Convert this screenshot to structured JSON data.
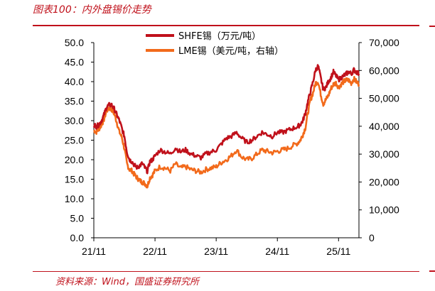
{
  "header": {
    "figure_title": "图表100：内外盘锡价走势"
  },
  "footer": {
    "source": "资料来源：Wind，国盛证券研究所"
  },
  "colors": {
    "accent": "#c0111b",
    "shfe": "#c0111b",
    "lme": "#f26a1b"
  },
  "chart_data": {
    "type": "line",
    "title": "",
    "xlabel": "",
    "ylabel": "",
    "x_ticks": [
      "21/11",
      "22/11",
      "23/11",
      "24/11",
      "25/11"
    ],
    "x_range": [
      "2021-11",
      "2026-03"
    ],
    "y_left": {
      "ticks": [
        "0.0",
        "5.0",
        "10.0",
        "15.0",
        "20.0",
        "25.0",
        "30.0",
        "35.0",
        "40.0",
        "45.0",
        "50.0"
      ],
      "range": [
        0,
        50
      ],
      "unit": "万元/吨"
    },
    "y_right": {
      "ticks": [
        "0",
        "10,000",
        "20,000",
        "30,000",
        "40,000",
        "50,000",
        "60,000",
        "70,000"
      ],
      "range": [
        0,
        70000
      ],
      "unit": "美元/吨"
    },
    "legend_position": "top",
    "grid": false,
    "series": [
      {
        "name": "SHFE锡（万元/吨）",
        "axis": "left",
        "x": [
          0,
          0.5,
          1,
          1.5,
          2,
          2.5,
          3,
          3.5,
          4,
          4.5,
          5,
          5.5,
          6,
          6.5,
          7,
          7.5,
          8,
          8.5,
          9,
          9.5,
          10,
          10.5,
          11,
          11.5,
          12,
          13,
          14,
          15,
          16,
          17,
          18,
          19,
          20,
          21,
          22,
          23,
          24,
          25,
          26,
          27,
          28,
          29,
          30,
          31,
          32,
          33,
          34,
          35,
          36,
          37,
          38,
          39,
          40,
          40.5,
          41,
          41.5,
          42,
          42.5,
          43,
          43.5,
          44,
          44.5,
          45,
          45.5,
          46,
          46.5,
          47,
          47.5,
          48,
          48.5,
          49,
          49.5,
          50,
          50.5,
          51,
          51.5,
          52
        ],
        "values": [
          29.0,
          28.5,
          29.0,
          30.0,
          31.5,
          33.5,
          34.0,
          34.0,
          33.0,
          31.5,
          30.0,
          28.0,
          26.0,
          22.0,
          20.0,
          19.5,
          18.5,
          18.0,
          18.5,
          19.0,
          18.0,
          17.0,
          19.5,
          20.0,
          21.0,
          22.5,
          22.0,
          21.5,
          23.0,
          22.0,
          22.5,
          21.5,
          21.0,
          20.5,
          21.5,
          22.0,
          22.5,
          24.0,
          25.5,
          26.0,
          27.0,
          25.5,
          24.5,
          25.0,
          26.0,
          27.0,
          26.5,
          26.0,
          27.0,
          27.0,
          27.5,
          28.0,
          28.5,
          29.0,
          30.0,
          32.0,
          35.0,
          37.5,
          40.0,
          43.0,
          44.0,
          41.0,
          38.0,
          38.5,
          40.0,
          41.0,
          42.5,
          41.5,
          40.5,
          41.0,
          41.5,
          42.0,
          42.5,
          42.0,
          43.0,
          42.5,
          42.0
        ]
      },
      {
        "name": "LME锡（美元/吨，右轴）",
        "axis": "right",
        "x": [
          0,
          0.5,
          1,
          1.5,
          2,
          2.5,
          3,
          3.5,
          4,
          4.5,
          5,
          5.5,
          6,
          6.5,
          7,
          7.5,
          8,
          8.5,
          9,
          9.5,
          10,
          10.5,
          11,
          11.5,
          12,
          13,
          14,
          15,
          16,
          17,
          18,
          19,
          20,
          21,
          22,
          23,
          24,
          25,
          26,
          27,
          28,
          29,
          30,
          31,
          32,
          33,
          34,
          35,
          36,
          37,
          38,
          39,
          40,
          40.5,
          41,
          41.5,
          42,
          42.5,
          43,
          43.5,
          44,
          44.5,
          45,
          45.5,
          46,
          46.5,
          47,
          47.5,
          48,
          48.5,
          49,
          49.5,
          50,
          50.5,
          51,
          51.5,
          52
        ],
        "values": [
          38500,
          38000,
          39000,
          40500,
          42500,
          45500,
          46500,
          46000,
          44500,
          41500,
          38000,
          36000,
          32000,
          26500,
          24500,
          24000,
          22500,
          21500,
          20500,
          20000,
          19500,
          18500,
          21500,
          22500,
          24000,
          25500,
          25000,
          24000,
          26500,
          25000,
          25500,
          24500,
          24000,
          23500,
          24500,
          25000,
          25500,
          27000,
          28000,
          29500,
          31500,
          29000,
          28000,
          28500,
          30000,
          31500,
          31000,
          30500,
          31000,
          31500,
          32000,
          33000,
          34000,
          35000,
          37000,
          39500,
          45000,
          49500,
          52000,
          55500,
          56000,
          51500,
          48000,
          49500,
          51000,
          53500,
          55000,
          55500,
          54000,
          55000,
          56000,
          56500,
          56500,
          55500,
          57000,
          56000,
          55000
        ]
      }
    ]
  }
}
